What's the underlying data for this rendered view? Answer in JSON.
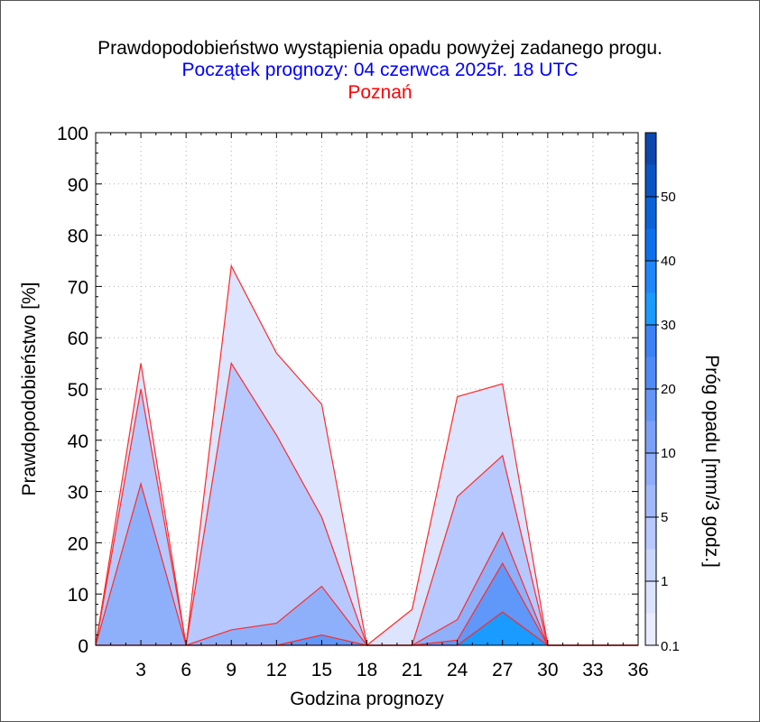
{
  "chart_data": {
    "type": "area",
    "title": "Prawdopodobieństwo wystąpienia opadu powyżej zadanego progu.",
    "subtitle": "Początek prognozy: 04 czerwca 2025r. 18 UTC",
    "location": "Poznań",
    "xlabel": "Godzina prognozy",
    "ylabel": "Prawdopodobieństwo [%]",
    "colorbar_label": "Próg opadu [mm/3 godz.]",
    "xlim": [
      0,
      36
    ],
    "ylim": [
      0,
      100
    ],
    "x_ticks": [
      3,
      6,
      9,
      12,
      15,
      18,
      21,
      24,
      27,
      30,
      33,
      36
    ],
    "y_ticks": [
      0,
      10,
      20,
      30,
      40,
      50,
      60,
      70,
      80,
      90,
      100
    ],
    "colorbar_levels": [
      0.1,
      0.5,
      1,
      2,
      5,
      7,
      10,
      15,
      20,
      25,
      30,
      35,
      40,
      45,
      50,
      55,
      60
    ],
    "colorbar_tick_labels": [
      "0.1",
      "1",
      "5",
      "10",
      "20",
      "30",
      "40",
      "50"
    ],
    "colorbar_colors": [
      "#e8ecfe",
      "#dbe3fe",
      "#c9d6fd",
      "#b6c8fd",
      "#a1b9fb",
      "#8fadf9",
      "#7aa1f7",
      "#6496f6",
      "#4f8bf6",
      "#3b82f6",
      "#1a9bff",
      "#1e87ff",
      "#0b70ee",
      "#0a62d8",
      "#0a55c4",
      "#0b47ad",
      "#0a3aa0"
    ],
    "x": [
      0,
      3,
      6,
      9,
      12,
      15,
      18,
      21,
      24,
      27,
      30,
      33,
      36
    ],
    "series": [
      {
        "threshold": 0.1,
        "color": "#dce4fe",
        "values": [
          0,
          55,
          0,
          74,
          57,
          47,
          0,
          7,
          48.5,
          51,
          0,
          0,
          0
        ]
      },
      {
        "threshold": 0.5,
        "color": "#b6c8fd",
        "values": [
          0,
          50,
          0,
          55,
          41,
          25,
          0,
          0,
          29,
          37,
          0,
          0,
          0
        ]
      },
      {
        "threshold": 1,
        "color": "#8eb0fb",
        "values": [
          0,
          31.5,
          0,
          3,
          4.3,
          11.5,
          0,
          0,
          5,
          22,
          0,
          0,
          0
        ]
      },
      {
        "threshold": 2,
        "color": "#5f98f8",
        "values": [
          0,
          0,
          0,
          0,
          0,
          2,
          0,
          0,
          1,
          16,
          0,
          0,
          0
        ]
      },
      {
        "threshold": 5,
        "color": "#1a9bff",
        "values": [
          0,
          0,
          0,
          0,
          0,
          0,
          0,
          0,
          0,
          6.5,
          0,
          0,
          0
        ]
      }
    ],
    "grid": true,
    "legend": "colorbar-right"
  }
}
